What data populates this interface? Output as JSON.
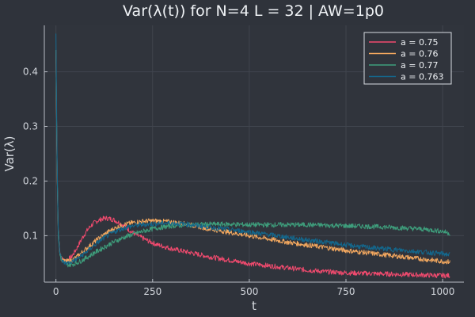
{
  "chart_data": {
    "type": "line",
    "title": "Var(λ(t)) for N=4 L = 32 | AW=1p0",
    "xlabel": "t",
    "ylabel": "Var(λ)",
    "xlim": [
      -30,
      1055
    ],
    "ylim": [
      0.015,
      0.485
    ],
    "xticks": [
      0,
      250,
      500,
      750,
      1000
    ],
    "yticks": [
      0.1,
      0.2,
      0.3,
      0.4
    ],
    "xtick_labels": [
      "0",
      "250",
      "500",
      "750",
      "1000"
    ],
    "ytick_labels": [
      "0.1",
      "0.2",
      "0.3",
      "0.4"
    ],
    "grid": true,
    "legend_position": "top-right",
    "background": "#2f333b",
    "series": [
      {
        "name": "a = 0.75",
        "color": "#f14a6e",
        "x": [
          0,
          3,
          6,
          10,
          15,
          20,
          30,
          40,
          50,
          60,
          70,
          80,
          90,
          100,
          110,
          120,
          130,
          140,
          150,
          160,
          170,
          180,
          190,
          200,
          220,
          240,
          260,
          280,
          300,
          320,
          340,
          360,
          380,
          400,
          450,
          500,
          550,
          600,
          650,
          700,
          750,
          800,
          850,
          900,
          950,
          1000,
          1020
        ],
        "y": [
          0.44,
          0.22,
          0.11,
          0.07,
          0.058,
          0.054,
          0.056,
          0.061,
          0.072,
          0.085,
          0.098,
          0.109,
          0.118,
          0.124,
          0.128,
          0.131,
          0.132,
          0.131,
          0.129,
          0.125,
          0.121,
          0.116,
          0.11,
          0.105,
          0.097,
          0.09,
          0.084,
          0.08,
          0.076,
          0.073,
          0.07,
          0.067,
          0.064,
          0.061,
          0.055,
          0.049,
          0.045,
          0.041,
          0.037,
          0.034,
          0.032,
          0.031,
          0.03,
          0.029,
          0.028,
          0.027,
          0.027
        ]
      },
      {
        "name": "a = 0.76",
        "color": "#f3a85f",
        "x": [
          0,
          3,
          6,
          10,
          15,
          20,
          30,
          40,
          50,
          60,
          80,
          100,
          120,
          140,
          160,
          180,
          200,
          220,
          240,
          260,
          280,
          300,
          320,
          340,
          360,
          380,
          400,
          450,
          500,
          550,
          600,
          650,
          700,
          750,
          800,
          850,
          900,
          950,
          1000,
          1020
        ],
        "y": [
          0.44,
          0.22,
          0.11,
          0.07,
          0.057,
          0.053,
          0.053,
          0.055,
          0.059,
          0.065,
          0.077,
          0.089,
          0.1,
          0.109,
          0.116,
          0.121,
          0.124,
          0.126,
          0.127,
          0.127,
          0.126,
          0.125,
          0.123,
          0.121,
          0.118,
          0.115,
          0.112,
          0.106,
          0.1,
          0.094,
          0.088,
          0.083,
          0.078,
          0.073,
          0.069,
          0.065,
          0.061,
          0.057,
          0.053,
          0.052
        ]
      },
      {
        "name": "a = 0.77",
        "color": "#3e9e7c",
        "x": [
          0,
          3,
          6,
          10,
          15,
          20,
          30,
          40,
          60,
          80,
          100,
          120,
          140,
          160,
          180,
          200,
          220,
          240,
          260,
          280,
          300,
          350,
          400,
          450,
          500,
          550,
          600,
          650,
          700,
          750,
          800,
          850,
          900,
          950,
          1000,
          1020
        ],
        "y": [
          0.44,
          0.22,
          0.1,
          0.066,
          0.054,
          0.05,
          0.047,
          0.047,
          0.052,
          0.06,
          0.069,
          0.077,
          0.085,
          0.092,
          0.098,
          0.103,
          0.107,
          0.111,
          0.114,
          0.116,
          0.118,
          0.12,
          0.121,
          0.121,
          0.12,
          0.12,
          0.12,
          0.12,
          0.119,
          0.118,
          0.117,
          0.116,
          0.114,
          0.112,
          0.108,
          0.104
        ]
      },
      {
        "name": "a = 0.763",
        "color": "#14678c",
        "x": [
          0,
          3,
          6,
          10,
          15,
          20,
          30,
          40,
          60,
          80,
          100,
          120,
          140,
          160,
          180,
          200,
          220,
          240,
          260,
          280,
          300,
          320,
          340,
          360,
          380,
          400,
          450,
          500,
          550,
          600,
          650,
          700,
          750,
          800,
          850,
          900,
          950,
          1000,
          1020
        ],
        "y": [
          0.47,
          0.24,
          0.11,
          0.068,
          0.055,
          0.051,
          0.05,
          0.052,
          0.06,
          0.071,
          0.083,
          0.094,
          0.103,
          0.11,
          0.115,
          0.118,
          0.12,
          0.121,
          0.122,
          0.123,
          0.123,
          0.122,
          0.121,
          0.119,
          0.117,
          0.115,
          0.111,
          0.107,
          0.102,
          0.097,
          0.092,
          0.088,
          0.083,
          0.079,
          0.076,
          0.073,
          0.07,
          0.067,
          0.065
        ]
      }
    ]
  }
}
